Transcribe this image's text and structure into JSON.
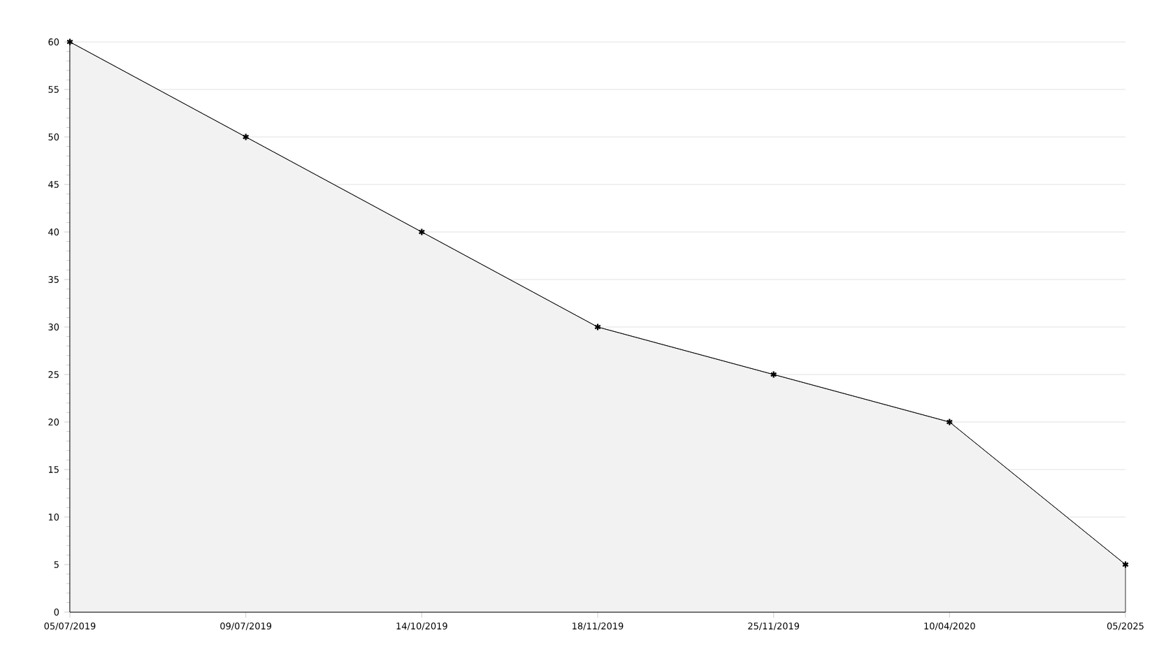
{
  "chart_data": {
    "type": "area",
    "categories": [
      "05/07/2019",
      "09/07/2019",
      "14/10/2019",
      "18/11/2019",
      "25/11/2019",
      "10/04/2020",
      "05/2025"
    ],
    "series": [
      {
        "color": "#000000",
        "values": [
          60,
          50,
          40,
          30,
          25,
          20,
          5
        ]
      }
    ],
    "ylim": [
      0,
      60
    ],
    "yticks": [
      0,
      5,
      10,
      15,
      20,
      25,
      30,
      35,
      40,
      45,
      50,
      55,
      60
    ],
    "grid": "y",
    "marker": "cross",
    "line_style": "solid"
  }
}
